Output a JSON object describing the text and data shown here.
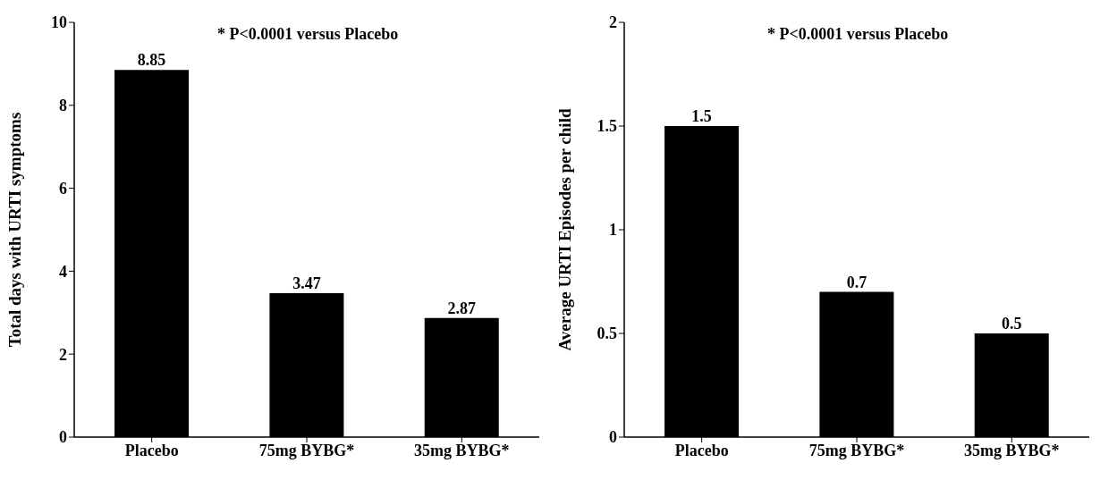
{
  "chart_data": [
    {
      "type": "bar",
      "ylabel": "Total days with URTI symptoms",
      "categories": [
        "Placebo",
        "75mg BYBG*",
        "35mg BYBG*"
      ],
      "values": [
        8.85,
        3.47,
        2.87
      ],
      "color": "#000000",
      "ylim": [
        0,
        10
      ],
      "yticks": [
        0,
        2,
        4,
        6,
        8,
        10
      ],
      "data_labels": true,
      "grid": false,
      "annotations": [
        "* P<0.0001 versus Placebo"
      ]
    },
    {
      "type": "bar",
      "ylabel": "Average URTI Episodes per child",
      "categories": [
        "Placebo",
        "75mg BYBG*",
        "35mg BYBG*"
      ],
      "values": [
        1.5,
        0.7,
        0.5
      ],
      "color": "#000000",
      "ylim": [
        0,
        2
      ],
      "yticks": [
        0,
        0.5,
        1,
        1.5,
        2
      ],
      "data_labels": true,
      "grid": false,
      "annotations": [
        "* P<0.0001 versus Placebo"
      ]
    }
  ]
}
